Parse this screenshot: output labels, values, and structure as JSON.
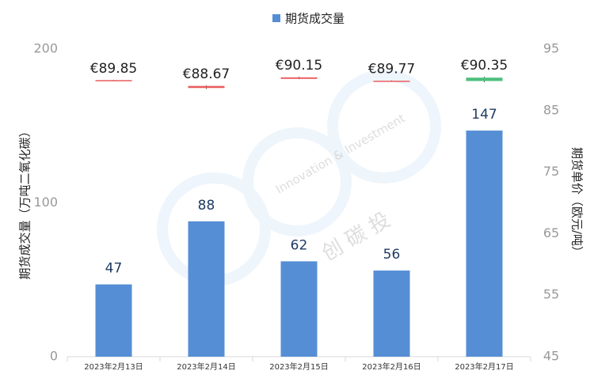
{
  "chart_data": {
    "type": "bar",
    "legend": "top",
    "categories": [
      "2023年2月13日",
      "2023年2月14日",
      "2023年2月15日",
      "2023年2月16日",
      "2023年2月17日"
    ],
    "series": [
      {
        "name": "期货成交量",
        "color": "#558ed5",
        "values": [
          47,
          88,
          62,
          56,
          147
        ]
      }
    ],
    "candles": {
      "axis": "y2",
      "open": [
        89.95,
        89.0,
        90.4,
        89.85,
        89.8
      ],
      "close": [
        89.85,
        88.67,
        90.15,
        89.77,
        90.35
      ],
      "high": [
        90.0,
        89.1,
        90.5,
        89.9,
        90.5
      ],
      "low": [
        89.8,
        88.5,
        90.1,
        89.7,
        89.6
      ],
      "value_labels": [
        "€89.85",
        "€88.67",
        "€90.15",
        "€89.77",
        "€90.35"
      ],
      "up_color": "#4dbf7e",
      "down_color": "#e85c5c"
    },
    "ylabel": "期货成交量（万吨二氧化碳）",
    "y2label": "期货单价（欧元/吨）",
    "ylim": [
      0,
      200
    ],
    "yticks": [
      0,
      100,
      200
    ],
    "y2lim": [
      45,
      95
    ],
    "y2ticks": [
      45,
      55,
      65,
      75,
      85,
      95
    ],
    "watermark": [
      "创 碳 投",
      "Innovation & Investment"
    ]
  }
}
